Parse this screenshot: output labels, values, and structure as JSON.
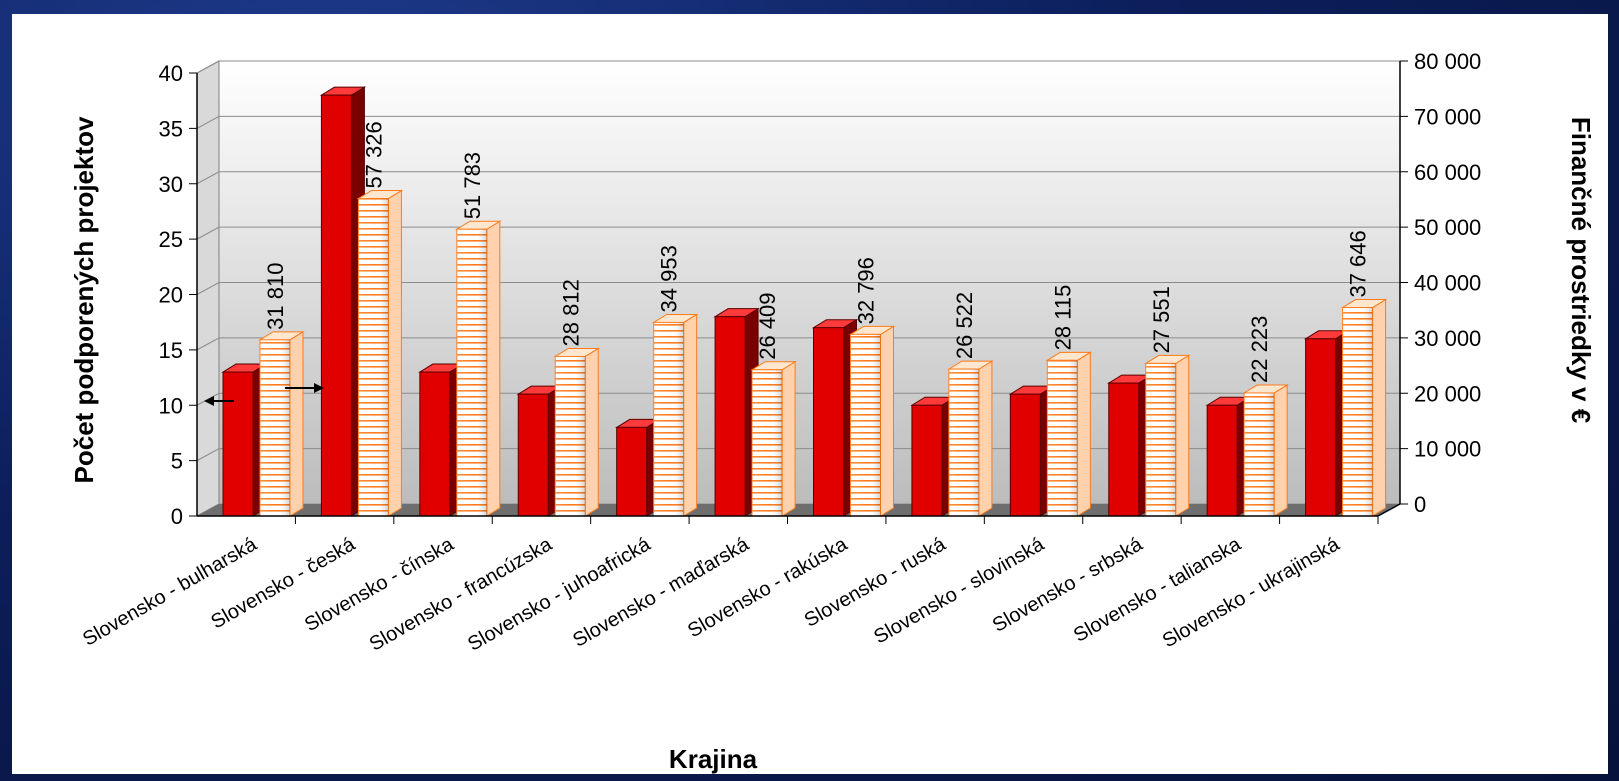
{
  "chart_data": {
    "type": "bar",
    "xlabel": "Krajina",
    "ylabel_left": "Počet podporených projektov",
    "ylabel_right": "Finančné prostriedky v €",
    "ylim_left": [
      0,
      40
    ],
    "ylim_right": [
      0,
      80000
    ],
    "left_ticks": [
      0,
      5,
      10,
      15,
      20,
      25,
      30,
      35,
      40
    ],
    "right_ticks": [
      "0",
      "10 000",
      "20 000",
      "30 000",
      "40 000",
      "50 000",
      "60 000",
      "70 000",
      "80 000"
    ],
    "categories": [
      "Slovensko - bulharská",
      "Slovensko - česká",
      "Slovensko - čínska",
      "Slovensko - francúzska",
      "Slovensko - juhoafrická",
      "Slovensko - maďarská",
      "Slovensko - rakúska",
      "Slovensko - ruská",
      "Slovensko - slovinská",
      "Slovensko - srbská",
      "Slovensko - talianska",
      "Slovensko - ukrajinská"
    ],
    "series": [
      {
        "axis": "left",
        "color": "#e00000",
        "values": [
          13,
          38,
          13,
          11,
          8,
          18,
          17,
          10,
          11,
          12,
          10,
          16
        ]
      },
      {
        "axis": "right",
        "color": "#ff7a1a",
        "pattern": "horizontal-stripes",
        "values": [
          31810,
          57326,
          51783,
          28812,
          34953,
          26409,
          32796,
          26522,
          28115,
          27551,
          22223,
          37646
        ],
        "labels": [
          "31 810",
          "57 326",
          "51 783",
          "28 812",
          "34 953",
          "26 409",
          "32 796",
          "26 522",
          "28 115",
          "27 551",
          "22 223",
          "37 646"
        ]
      }
    ],
    "grid": true,
    "legend": "none"
  }
}
